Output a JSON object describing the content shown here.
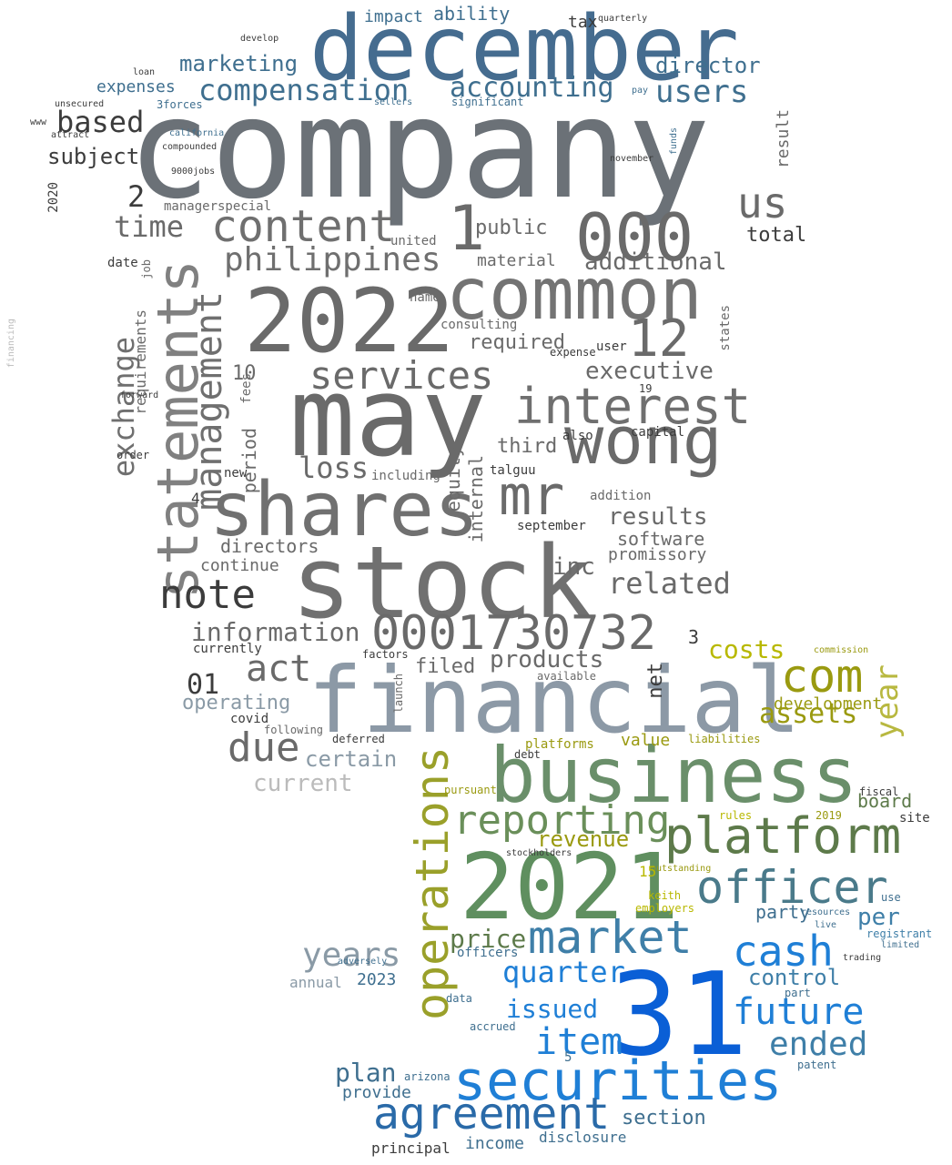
{
  "words": [
    {
      "text": "company",
      "color": "#6b7177"
    },
    {
      "text": "december",
      "color": "#456c8f"
    },
    {
      "text": "2022",
      "color": "#6a6a6a"
    },
    {
      "text": "common",
      "color": "#737373"
    },
    {
      "text": "may",
      "color": "#6a6a6a"
    },
    {
      "text": "stock",
      "color": "#707070"
    },
    {
      "text": "shares",
      "color": "#707070"
    },
    {
      "text": "statements",
      "color": "#808080"
    },
    {
      "text": "wong",
      "color": "#6a6a6a"
    },
    {
      "text": "mr",
      "color": "#6a6a6a"
    },
    {
      "text": "000",
      "color": "#6a6a6a"
    },
    {
      "text": "1",
      "color": "#6a6a6a"
    },
    {
      "text": "12",
      "color": "#6a6a6a"
    },
    {
      "text": "interest",
      "color": "#6f6f6f"
    },
    {
      "text": "content",
      "color": "#6f6f6f"
    },
    {
      "text": "philippines",
      "color": "#6f6f6f"
    },
    {
      "text": "services",
      "color": "#6a6a6a"
    },
    {
      "text": "management",
      "color": "#6f6f6f"
    },
    {
      "text": "exchange",
      "color": "#6f6f6f"
    },
    {
      "text": "note",
      "color": "#3c3c3c"
    },
    {
      "text": "0001730732",
      "color": "#6a6a6a"
    },
    {
      "text": "financial",
      "color": "#8c99a6"
    },
    {
      "text": "business",
      "color": "#6a8f6a"
    },
    {
      "text": "2021",
      "color": "#5f8f5f"
    },
    {
      "text": "31",
      "color": "#0a5fd6"
    },
    {
      "text": "securities",
      "color": "#1f7fd6"
    },
    {
      "text": "agreement",
      "color": "#2a6aa8"
    },
    {
      "text": "platform",
      "color": "#5d7a4a"
    },
    {
      "text": "officer",
      "color": "#4a7a8a"
    },
    {
      "text": "market",
      "color": "#3f7fa8"
    },
    {
      "text": "operations",
      "color": "#9aa02a"
    },
    {
      "text": "reporting",
      "color": "#6a8f5a"
    },
    {
      "text": "cash",
      "color": "#1f7fd6"
    },
    {
      "text": "com",
      "color": "#9a9a10"
    },
    {
      "text": "item",
      "color": "#1f7fd6"
    },
    {
      "text": "future",
      "color": "#1f7fd6"
    },
    {
      "text": "ended",
      "color": "#3f7fa8"
    },
    {
      "text": "compensation",
      "color": "#3f6f8f"
    },
    {
      "text": "accounting",
      "color": "#3f6f8f"
    },
    {
      "text": "users",
      "color": "#3f6f8f"
    },
    {
      "text": "based",
      "color": "#3c3c3c"
    },
    {
      "text": "marketing",
      "color": "#3f6f8f"
    },
    {
      "text": "director",
      "color": "#3f6f8f"
    },
    {
      "text": "due",
      "color": "#6a6a6a"
    },
    {
      "text": "act",
      "color": "#6a6a6a"
    },
    {
      "text": "loss",
      "color": "#6a6a6a"
    },
    {
      "text": "time",
      "color": "#6a6a6a"
    },
    {
      "text": "us",
      "color": "#6a6a6a"
    },
    {
      "text": "years",
      "color": "#8a9aa6"
    },
    {
      "text": "quarter",
      "color": "#1f7fd6"
    },
    {
      "text": "issued",
      "color": "#1f7fd6"
    },
    {
      "text": "plan",
      "color": "#3f6f8f"
    },
    {
      "text": "price",
      "color": "#5d7a4a"
    },
    {
      "text": "costs",
      "color": "#b8b800"
    },
    {
      "text": "assets",
      "color": "#9a9a10"
    },
    {
      "text": "year",
      "color": "#b8b840"
    },
    {
      "text": "development",
      "color": "#9a9a10"
    },
    {
      "text": "revenue",
      "color": "#9a9a10"
    },
    {
      "text": "control",
      "color": "#3f7fa8"
    },
    {
      "text": "per",
      "color": "#3f7fa8"
    },
    {
      "text": "party",
      "color": "#3f6f8f"
    },
    {
      "text": "additional",
      "color": "#6a6a6a"
    },
    {
      "text": "executive",
      "color": "#6a6a6a"
    },
    {
      "text": "related",
      "color": "#6a6a6a"
    },
    {
      "text": "results",
      "color": "#6a6a6a"
    },
    {
      "text": "information",
      "color": "#6a6a6a"
    },
    {
      "text": "products",
      "color": "#6a6a6a"
    },
    {
      "text": "public",
      "color": "#6a6a6a"
    },
    {
      "text": "total",
      "color": "#3c3c3c"
    },
    {
      "text": "required",
      "color": "#6a6a6a"
    },
    {
      "text": "material",
      "color": "#6a6a6a"
    },
    {
      "text": "software",
      "color": "#6a6a6a"
    },
    {
      "text": "promissory",
      "color": "#6a6a6a"
    },
    {
      "text": "directors",
      "color": "#6a6a6a"
    },
    {
      "text": "continue",
      "color": "#6a6a6a"
    },
    {
      "text": "current",
      "color": "#bbbbbb"
    },
    {
      "text": "certain",
      "color": "#8a9aa6"
    },
    {
      "text": "operating",
      "color": "#8a9aa6"
    },
    {
      "text": "subject",
      "color": "#3c3c3c"
    },
    {
      "text": "expenses",
      "color": "#3f6f8f"
    },
    {
      "text": "impact",
      "color": "#3f6f8f"
    },
    {
      "text": "ability",
      "color": "#3f6f8f"
    },
    {
      "text": "tax",
      "color": "#3c3c3c"
    },
    {
      "text": "01",
      "color": "#3c3c3c"
    },
    {
      "text": "2",
      "color": "#3c3c3c"
    },
    {
      "text": "10",
      "color": "#6a6a6a"
    },
    {
      "text": "third",
      "color": "#6a6a6a"
    },
    {
      "text": "inc",
      "color": "#6a6a6a"
    },
    {
      "text": "filed",
      "color": "#6a6a6a"
    },
    {
      "text": "net",
      "color": "#3c3c3c"
    },
    {
      "text": "value",
      "color": "#9a9a10"
    },
    {
      "text": "board",
      "color": "#5d7a4a"
    },
    {
      "text": "income",
      "color": "#3f6f8f"
    },
    {
      "text": "disclosure",
      "color": "#3f6f8f"
    },
    {
      "text": "section",
      "color": "#3f6f8f"
    },
    {
      "text": "provide",
      "color": "#3f6f8f"
    },
    {
      "text": "principal",
      "color": "#3c3c3c"
    },
    {
      "text": "officers",
      "color": "#3f6f8f"
    },
    {
      "text": "2023",
      "color": "#3f6f8f"
    },
    {
      "text": "annual",
      "color": "#8a9aa6"
    },
    {
      "text": "period",
      "color": "#6a6a6a"
    },
    {
      "text": "requirements",
      "color": "#6a6a6a"
    },
    {
      "text": "equity",
      "color": "#6a6a6a"
    },
    {
      "text": "internal",
      "color": "#6a6a6a"
    },
    {
      "text": "result",
      "color": "#6a6a6a"
    },
    {
      "text": "states",
      "color": "#6a6a6a"
    },
    {
      "text": "operations",
      "color": "#9aa02a"
    },
    {
      "text": "fees",
      "color": "#6a6a6a"
    },
    {
      "text": "launch",
      "color": "#6a6a6a"
    },
    {
      "text": "job",
      "color": "#6a6a6a"
    },
    {
      "text": "managerspecial",
      "color": "#6a6a6a"
    },
    {
      "text": "united",
      "color": "#6a6a6a"
    },
    {
      "text": "name",
      "color": "#6a6a6a"
    },
    {
      "text": "consulting",
      "color": "#6a6a6a"
    },
    {
      "text": "user",
      "color": "#3c3c3c"
    },
    {
      "text": "expense",
      "color": "#3c3c3c"
    },
    {
      "text": "capital",
      "color": "#3c3c3c"
    },
    {
      "text": "addition",
      "color": "#6a6a6a"
    },
    {
      "text": "september",
      "color": "#3c3c3c"
    },
    {
      "text": "talguu",
      "color": "#3c3c3c"
    },
    {
      "text": "also",
      "color": "#3c3c3c"
    },
    {
      "text": "including",
      "color": "#6a6a6a"
    },
    {
      "text": "date",
      "color": "#3c3c3c"
    },
    {
      "text": "new",
      "color": "#3c3c3c"
    },
    {
      "text": "order",
      "color": "#3c3c3c"
    },
    {
      "text": "forward",
      "color": "#3c3c3c"
    },
    {
      "text": "currently",
      "color": "#3c3c3c"
    },
    {
      "text": "available",
      "color": "#6a6a6a"
    },
    {
      "text": "covid",
      "color": "#3c3c3c"
    },
    {
      "text": "following",
      "color": "#6a6a6a"
    },
    {
      "text": "deferred",
      "color": "#3c3c3c"
    },
    {
      "text": "factors",
      "color": "#3c3c3c"
    },
    {
      "text": "platforms",
      "color": "#9a9a10"
    },
    {
      "text": "liabilities",
      "color": "#9a9a10"
    },
    {
      "text": "debt",
      "color": "#3c3c3c"
    },
    {
      "text": "pursuant",
      "color": "#9a9a10"
    },
    {
      "text": "stockholders",
      "color": "#3c3c3c"
    },
    {
      "text": "outstanding",
      "color": "#9a9a10"
    },
    {
      "text": "keith",
      "color": "#b8b800"
    },
    {
      "text": "employers",
      "color": "#b8b800"
    },
    {
      "text": "rules",
      "color": "#b8b800"
    },
    {
      "text": "fiscal",
      "color": "#3c3c3c"
    },
    {
      "text": "site",
      "color": "#3c3c3c"
    },
    {
      "text": "2019",
      "color": "#9a9a10"
    },
    {
      "text": "resources",
      "color": "#3f6f8f"
    },
    {
      "text": "use",
      "color": "#3f6f8f"
    },
    {
      "text": "live",
      "color": "#3f6f8f"
    },
    {
      "text": "registrant",
      "color": "#3f7fa8"
    },
    {
      "text": "limited",
      "color": "#3f6f8f"
    },
    {
      "text": "trading",
      "color": "#3c3c3c"
    },
    {
      "text": "part",
      "color": "#3f6f8f"
    },
    {
      "text": "patent",
      "color": "#3f6f8f"
    },
    {
      "text": "accrued",
      "color": "#3f6f8f"
    },
    {
      "text": "data",
      "color": "#3f6f8f"
    },
    {
      "text": "arizona",
      "color": "#3f6f8f"
    },
    {
      "text": "adversely",
      "color": "#3f6f8f"
    },
    {
      "text": "commission",
      "color": "#9a9a10"
    },
    {
      "text": "unsecured",
      "color": "#3c3c3c"
    },
    {
      "text": "loan",
      "color": "#3c3c3c"
    },
    {
      "text": "3forces",
      "color": "#3f6f8f"
    },
    {
      "text": "california",
      "color": "#3f6f8f"
    },
    {
      "text": "compounded",
      "color": "#3c3c3c"
    },
    {
      "text": "9000jobs",
      "color": "#3c3c3c"
    },
    {
      "text": "develop",
      "color": "#3c3c3c"
    },
    {
      "text": "quarterly",
      "color": "#3c3c3c"
    },
    {
      "text": "significant",
      "color": "#3f6f8f"
    },
    {
      "text": "pay",
      "color": "#3f6f8f"
    },
    {
      "text": "sellers",
      "color": "#3f6f8f"
    },
    {
      "text": "funds",
      "color": "#3f6f8f"
    },
    {
      "text": "november",
      "color": "#3c3c3c"
    },
    {
      "text": "2020",
      "color": "#3c3c3c"
    },
    {
      "text": "www",
      "color": "#3c3c3c"
    },
    {
      "text": "attract",
      "color": "#3c3c3c"
    },
    {
      "text": "financing",
      "color": "#bbbbbb"
    },
    {
      "text": "4",
      "color": "#3c3c3c"
    },
    {
      "text": "19",
      "color": "#3c3c3c"
    },
    {
      "text": "15",
      "color": "#b8b800"
    },
    {
      "text": "3",
      "color": "#3c3c3c"
    },
    {
      "text": "5",
      "color": "#3f6f8f"
    }
  ]
}
